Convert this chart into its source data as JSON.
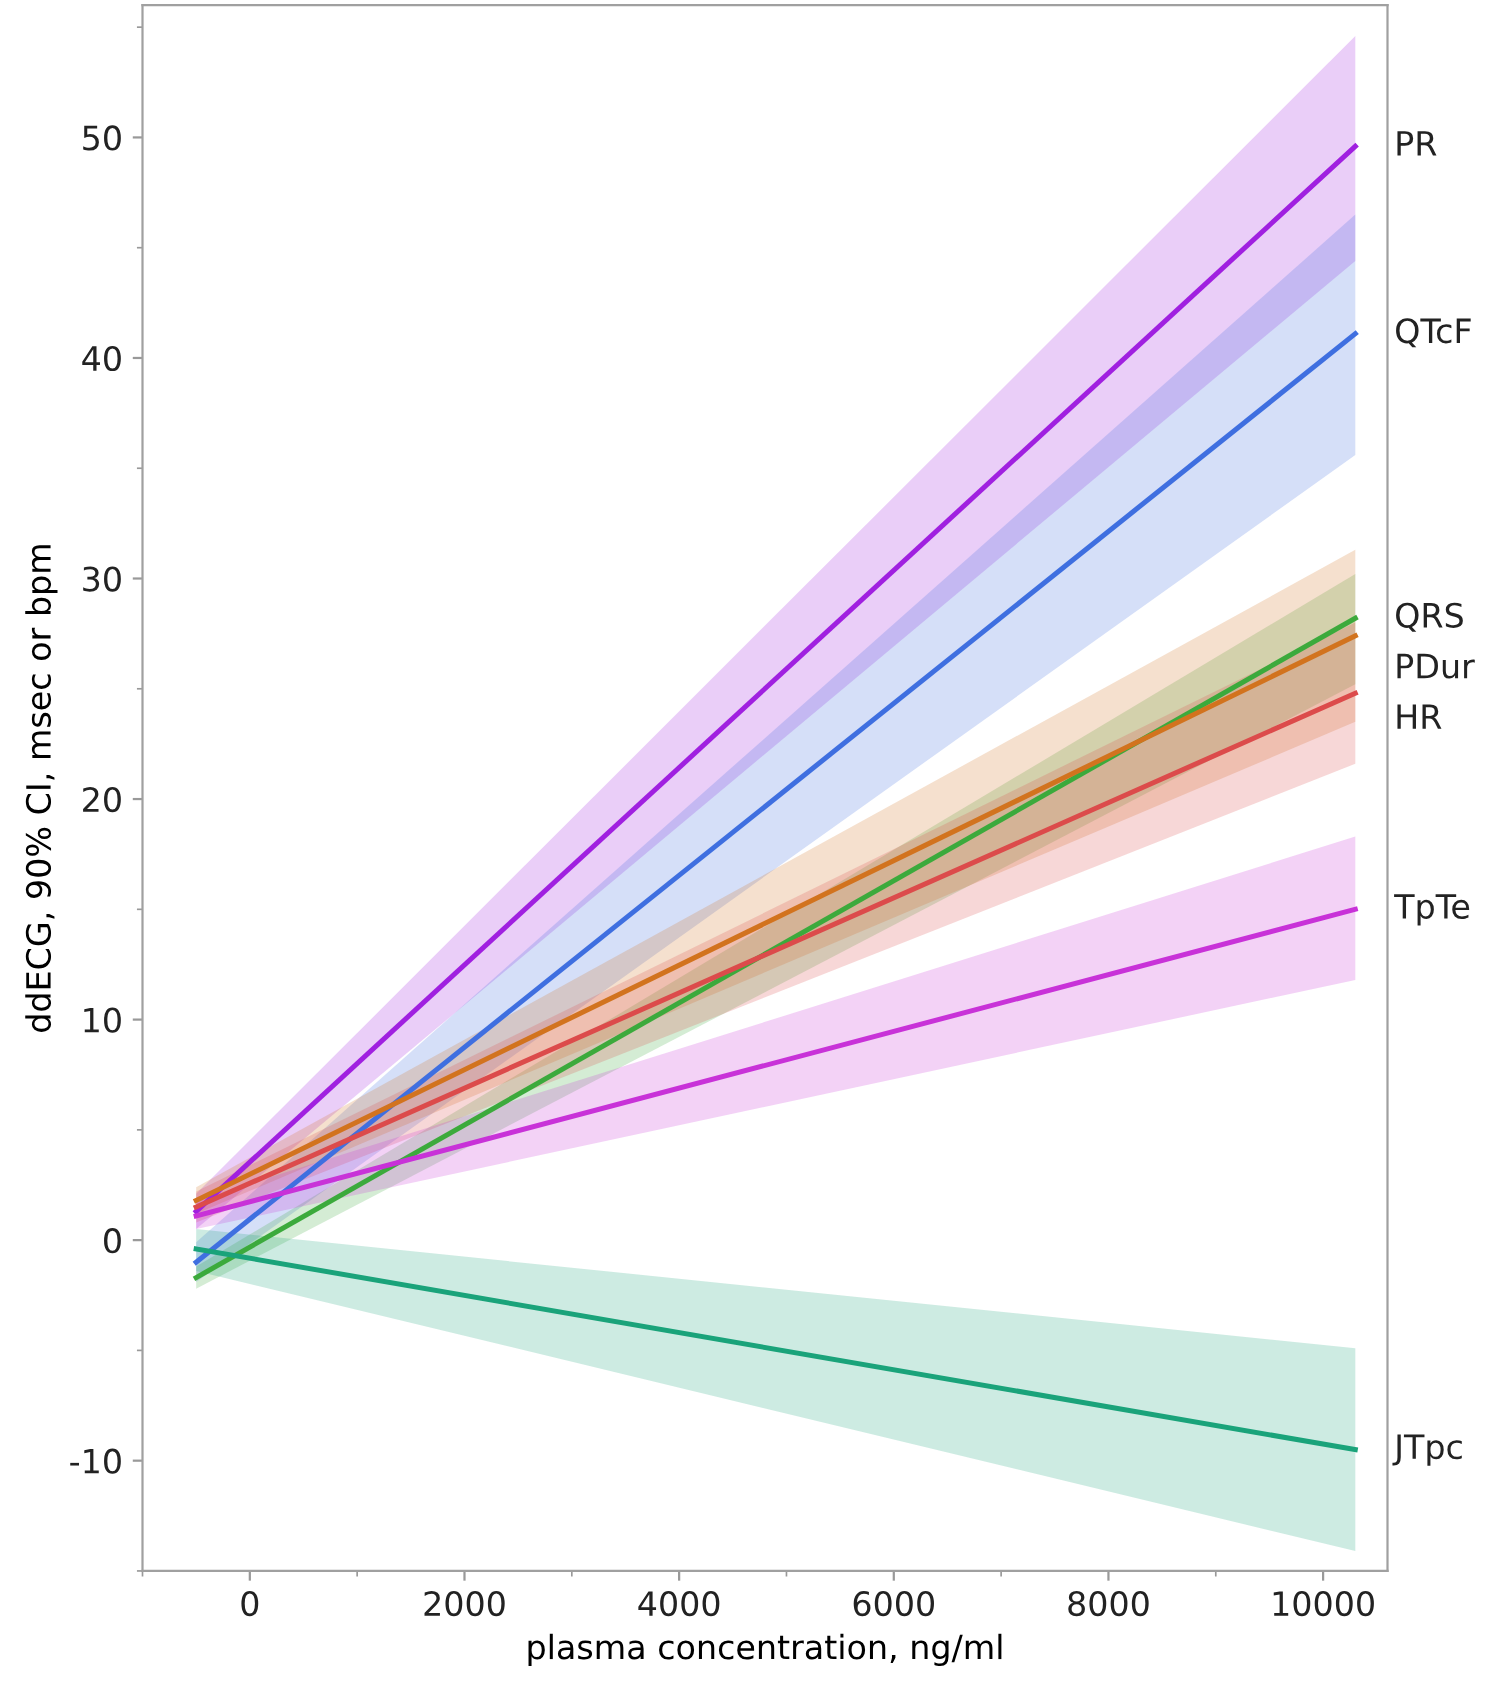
{
  "chart_data": {
    "type": "line",
    "xlabel": "plasma concentration, ng/ml",
    "ylabel": "ddECG, 90% CI, msec or bpm",
    "xlim": [
      -1000,
      10600
    ],
    "ylim": [
      -15,
      56
    ],
    "xticks": [
      0,
      2000,
      4000,
      6000,
      8000,
      10000
    ],
    "yticks": [
      -10,
      0,
      10,
      20,
      30,
      40,
      50
    ],
    "grid": false,
    "legend": false,
    "marker": "none",
    "line_style": "solid",
    "x": [
      -500,
      10300
    ],
    "series": [
      {
        "name": "PR",
        "color": "#a020e0",
        "values": [
          1.3,
          49.6
        ],
        "lower": [
          0.5,
          44.4
        ],
        "upper": [
          2.1,
          54.6
        ]
      },
      {
        "name": "QTcF",
        "color": "#3f6fe0",
        "values": [
          -1.0,
          41.1
        ],
        "lower": [
          -1.9,
          35.6
        ],
        "upper": [
          -0.1,
          46.5
        ]
      },
      {
        "name": "QRS",
        "color": "#3caa3c",
        "values": [
          -1.7,
          28.2
        ],
        "lower": [
          -2.2,
          25.2
        ],
        "upper": [
          -1.2,
          30.2
        ]
      },
      {
        "name": "PDur",
        "color": "#d2731e",
        "values": [
          1.8,
          27.4
        ],
        "lower": [
          1.2,
          23.5
        ],
        "upper": [
          2.4,
          31.3
        ]
      },
      {
        "name": "HR",
        "color": "#dc4b4b",
        "values": [
          1.5,
          24.8
        ],
        "lower": [
          0.8,
          21.6
        ],
        "upper": [
          2.2,
          28.0
        ]
      },
      {
        "name": "TpTe",
        "color": "#c832d8",
        "values": [
          1.1,
          15.0
        ],
        "lower": [
          0.5,
          11.8
        ],
        "upper": [
          1.8,
          18.3
        ]
      },
      {
        "name": "JTpc",
        "color": "#1aa37a",
        "values": [
          -0.4,
          -9.5
        ],
        "lower": [
          -1.4,
          -14.1
        ],
        "upper": [
          0.5,
          -4.9
        ]
      }
    ]
  }
}
